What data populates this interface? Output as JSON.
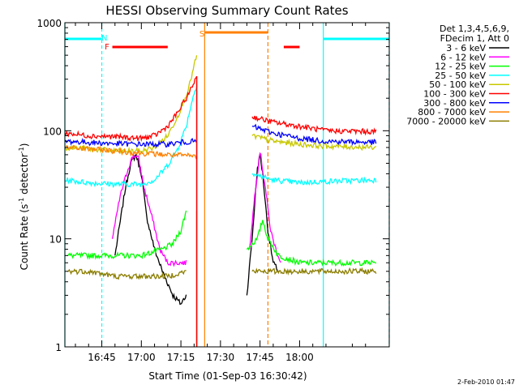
{
  "chart_data": {
    "type": "line",
    "title": "HESSI Observing Summary Count Rates",
    "xlabel": "Start Time (01-Sep-03 16:30:42)",
    "ylabel_main": "Count Rate (s",
    "ylabel_sup1": "-1",
    "ylabel_mid": " detector",
    "ylabel_sup2": "-1",
    "ylabel_end": ")",
    "y_scale": "log",
    "ylim": [
      1,
      1000
    ],
    "xlim_minutes_from_16_30": [
      1,
      124
    ],
    "x_ticks": [
      {
        "label": "16:45",
        "t": 15
      },
      {
        "label": "17:00",
        "t": 30
      },
      {
        "label": "17:15",
        "t": 45
      },
      {
        "label": "17:30",
        "t": 60
      },
      {
        "label": "17:45",
        "t": 75
      },
      {
        "label": "18:00",
        "t": 90
      }
    ],
    "y_ticks": [
      {
        "label": "1",
        "v": 1
      },
      {
        "label": "10",
        "v": 10
      },
      {
        "label": "100",
        "v": 100
      },
      {
        "label": "1000",
        "v": 1000
      }
    ],
    "legend_header": [
      "Det 1,3,4,5,6,9,",
      "FDecim 1, Att 0"
    ],
    "series": [
      {
        "name": "3 - 6 keV",
        "color": "#000000",
        "points": [
          [
            20,
            7
          ],
          [
            24,
            30
          ],
          [
            26,
            50
          ],
          [
            28,
            60
          ],
          [
            30,
            40
          ],
          [
            32,
            16
          ],
          [
            35,
            8
          ],
          [
            38,
            5
          ],
          [
            42,
            3
          ],
          [
            45,
            2.5
          ],
          [
            47,
            3
          ],
          [
            null,
            null
          ],
          [
            70,
            3
          ],
          [
            72,
            10
          ],
          [
            74,
            45
          ],
          [
            75,
            60
          ],
          [
            76,
            40
          ],
          [
            78,
            12
          ],
          [
            80,
            6
          ],
          [
            82,
            5
          ]
        ]
      },
      {
        "name": "6 - 12 keV",
        "color": "#ff00ff",
        "points": [
          [
            19,
            10
          ],
          [
            22,
            25
          ],
          [
            25,
            45
          ],
          [
            27,
            60
          ],
          [
            29,
            55
          ],
          [
            31,
            30
          ],
          [
            34,
            16
          ],
          [
            37,
            8
          ],
          [
            40,
            6
          ],
          [
            44,
            6
          ],
          [
            47,
            6
          ],
          [
            null,
            null
          ],
          [
            71,
            8
          ],
          [
            73,
            25
          ],
          [
            75,
            65
          ],
          [
            77,
            30
          ],
          [
            79,
            12
          ],
          [
            81,
            8
          ],
          [
            83,
            6
          ]
        ]
      },
      {
        "name": "12 - 25 keV",
        "color": "#00ff00",
        "points": [
          [
            2,
            7
          ],
          [
            10,
            7
          ],
          [
            20,
            7
          ],
          [
            30,
            7
          ],
          [
            38,
            8
          ],
          [
            42,
            9
          ],
          [
            45,
            12
          ],
          [
            47,
            18
          ],
          [
            null,
            null
          ],
          [
            70,
            8
          ],
          [
            74,
            10
          ],
          [
            76,
            15
          ],
          [
            78,
            10
          ],
          [
            82,
            7
          ],
          [
            90,
            6
          ],
          [
            100,
            6
          ],
          [
            119,
            6
          ]
        ]
      },
      {
        "name": "25 - 50 keV",
        "color": "#00ffff",
        "points": [
          [
            1,
            35
          ],
          [
            10,
            33
          ],
          [
            20,
            32
          ],
          [
            30,
            32
          ],
          [
            35,
            35
          ],
          [
            40,
            48
          ],
          [
            44,
            70
          ],
          [
            47,
            110
          ],
          [
            49,
            180
          ],
          [
            51,
            270
          ],
          [
            null,
            null
          ],
          [
            72,
            40
          ],
          [
            80,
            35
          ],
          [
            90,
            33
          ],
          [
            100,
            34
          ],
          [
            119,
            35
          ]
        ]
      },
      {
        "name": "50 - 100 keV",
        "color": "#c8c800",
        "points": [
          [
            1,
            70
          ],
          [
            10,
            68
          ],
          [
            20,
            65
          ],
          [
            30,
            65
          ],
          [
            35,
            70
          ],
          [
            40,
            90
          ],
          [
            44,
            140
          ],
          [
            48,
            250
          ],
          [
            51,
            500
          ],
          [
            null,
            null
          ],
          [
            72,
            90
          ],
          [
            80,
            80
          ],
          [
            90,
            75
          ],
          [
            100,
            72
          ],
          [
            119,
            70
          ]
        ]
      },
      {
        "name": "100 - 300 keV",
        "color": "#ff0000",
        "points": [
          [
            1,
            95
          ],
          [
            10,
            90
          ],
          [
            20,
            88
          ],
          [
            30,
            85
          ],
          [
            35,
            90
          ],
          [
            40,
            110
          ],
          [
            44,
            150
          ],
          [
            48,
            220
          ],
          [
            51,
            320
          ],
          [
            null,
            null
          ],
          [
            72,
            135
          ],
          [
            80,
            120
          ],
          [
            90,
            110
          ],
          [
            100,
            100
          ],
          [
            119,
            98
          ]
        ]
      },
      {
        "name": "300 - 800 keV",
        "color": "#0000ff",
        "points": [
          [
            1,
            80
          ],
          [
            10,
            78
          ],
          [
            20,
            76
          ],
          [
            30,
            75
          ],
          [
            40,
            75
          ],
          [
            45,
            78
          ],
          [
            51,
            80
          ],
          [
            null,
            null
          ],
          [
            72,
            110
          ],
          [
            80,
            95
          ],
          [
            90,
            85
          ],
          [
            100,
            80
          ],
          [
            119,
            78
          ]
        ]
      },
      {
        "name": "800 - 7000 keV",
        "color": "#ff8000",
        "points": [
          [
            1,
            70
          ],
          [
            10,
            68
          ],
          [
            20,
            65
          ],
          [
            30,
            62
          ],
          [
            40,
            60
          ],
          [
            51,
            58
          ],
          [
            null,
            null
          ]
        ]
      },
      {
        "name": "7000 - 20000 keV",
        "color": "#8b7d00",
        "points": [
          [
            2,
            5
          ],
          [
            10,
            5
          ],
          [
            20,
            4.5
          ],
          [
            30,
            4.5
          ],
          [
            40,
            4.5
          ],
          [
            47,
            5
          ],
          [
            null,
            null
          ],
          [
            72,
            5
          ],
          [
            80,
            5
          ],
          [
            90,
            5
          ],
          [
            100,
            5
          ],
          [
            119,
            5
          ]
        ]
      }
    ],
    "markers": [
      {
        "label": "N",
        "color": "#00ffff"
      },
      {
        "label": "F",
        "color": "#ff0000"
      },
      {
        "label": "S",
        "color": "#ff8000"
      }
    ],
    "timestamp": "2-Feb-2010 01:47"
  }
}
